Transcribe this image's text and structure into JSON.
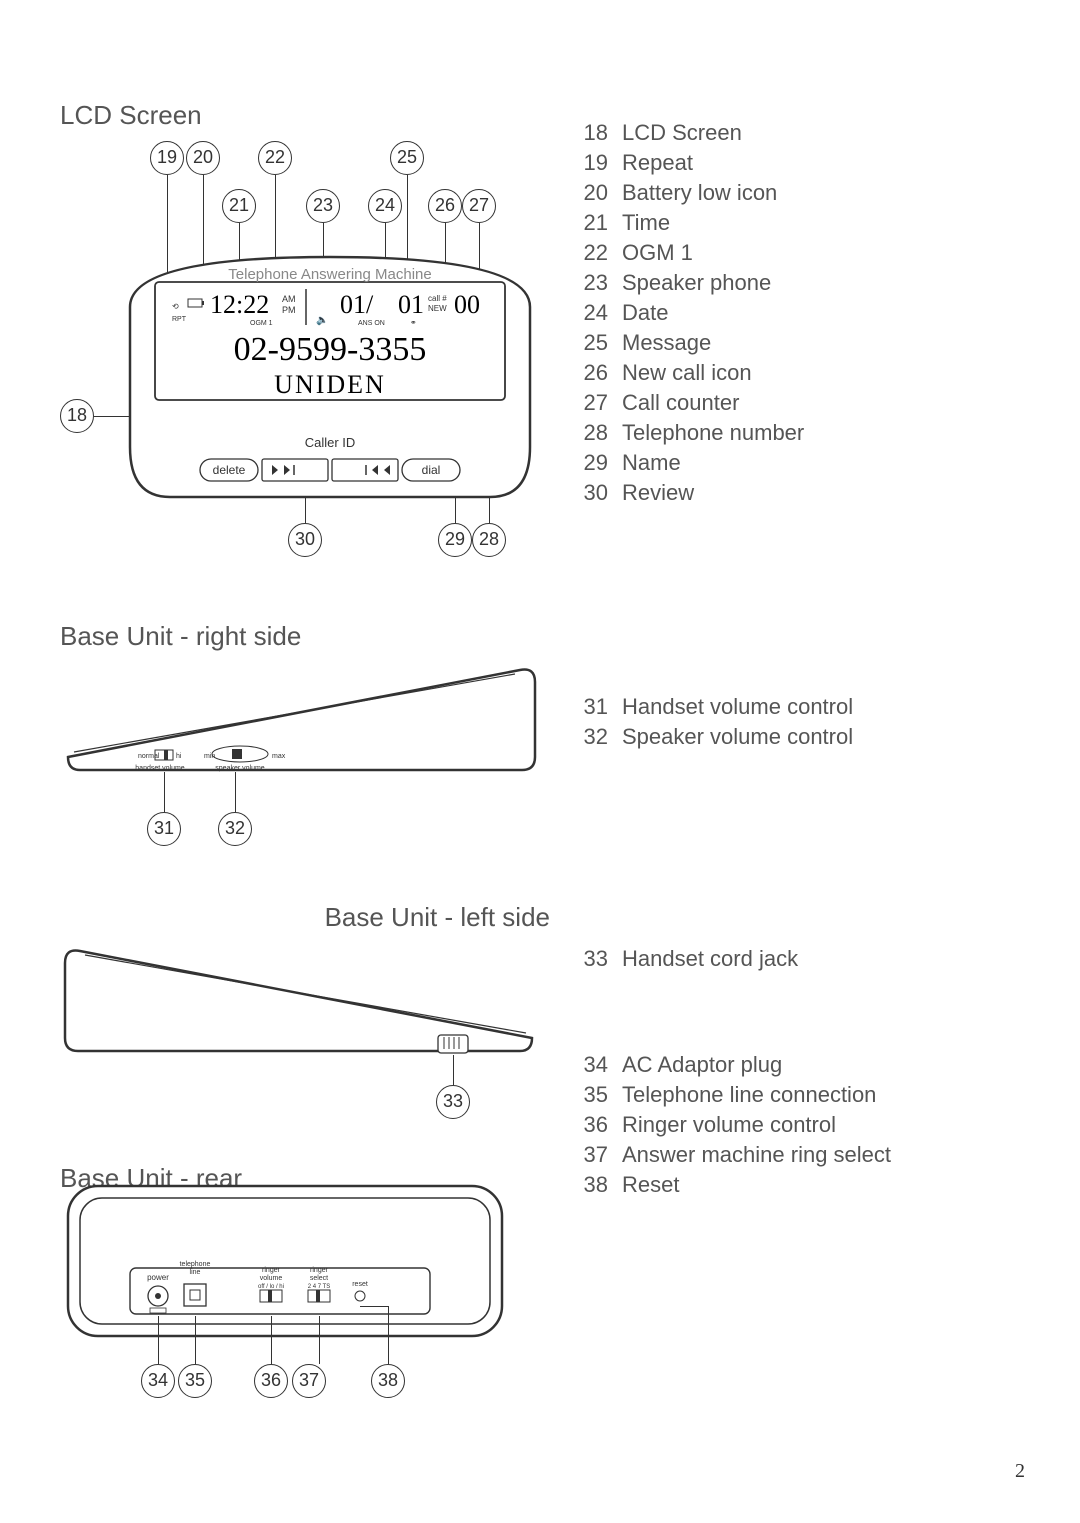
{
  "page_number": "2",
  "sections": {
    "lcd_title": "LCD Screen",
    "right_side_title": "Base Unit -  right side",
    "left_side_title": "Base Unit -  left side",
    "rear_title": "Base Unit -  rear"
  },
  "lcd_display": {
    "header": "Telephone Answering Machine",
    "time": "12:22",
    "ampm_top": "AM",
    "ampm_bot": "PM",
    "rpt": "RPT",
    "ogm": "OGM 1",
    "date": "01/",
    "msg": "01",
    "call_lbl_top": "call #",
    "call_lbl_bot": "NEW",
    "counter": "00",
    "ans": "ANS ON",
    "phone": "02-9599-3355",
    "name": "UNIDEN",
    "caller_id": "Caller ID",
    "btn_delete": "delete",
    "btn_dial": "dial"
  },
  "right_side_labels": {
    "handset": "handset volume",
    "speaker": "speaker volume",
    "normal": "normal",
    "hi": "hi",
    "min": "min",
    "max": "max"
  },
  "rear_labels": {
    "power": "power",
    "tel_line": "telephone\nline",
    "ringer_vol": "ringer\nvolume\noff / lo / hi",
    "ringer_sel": "ringer\nselect\n2 4 7 TS",
    "reset": "reset"
  },
  "legend_lcd": [
    {
      "n": "18",
      "t": "LCD Screen"
    },
    {
      "n": "19",
      "t": "Repeat"
    },
    {
      "n": "20",
      "t": "Battery low icon"
    },
    {
      "n": "21",
      "t": "Time"
    },
    {
      "n": "22",
      "t": "OGM 1"
    },
    {
      "n": "23",
      "t": "Speaker phone"
    },
    {
      "n": "24",
      "t": "Date"
    },
    {
      "n": "25",
      "t": "Message"
    },
    {
      "n": "26",
      "t": "New call icon"
    },
    {
      "n": "27",
      "t": "Call counter"
    },
    {
      "n": "28",
      "t": "Telephone number"
    },
    {
      "n": "29",
      "t": "Name"
    },
    {
      "n": "30",
      "t": "Review"
    }
  ],
  "legend_right": [
    {
      "n": "31",
      "t": "Handset volume control"
    },
    {
      "n": "32",
      "t": "Speaker volume control"
    }
  ],
  "legend_left": [
    {
      "n": "33",
      "t": "Handset cord jack"
    }
  ],
  "legend_rear": [
    {
      "n": "34",
      "t": "AC Adaptor plug"
    },
    {
      "n": "35",
      "t": "Telephone line connection"
    },
    {
      "n": "36",
      "t": "Ringer volume control"
    },
    {
      "n": "37",
      "t": "Answer machine ring select"
    },
    {
      "n": "38",
      "t": "Reset"
    }
  ],
  "callouts": {
    "lcd_top": [
      "19",
      "20",
      "22",
      "25"
    ],
    "lcd_mid": [
      "21",
      "23",
      "24",
      "26",
      "27"
    ],
    "lcd_left": "18",
    "lcd_bottom": [
      "30",
      "29",
      "28"
    ],
    "right_bot": [
      "31",
      "32"
    ],
    "left_bot": "33",
    "rear_bot": [
      "34",
      "35",
      "36",
      "37",
      "38"
    ]
  }
}
